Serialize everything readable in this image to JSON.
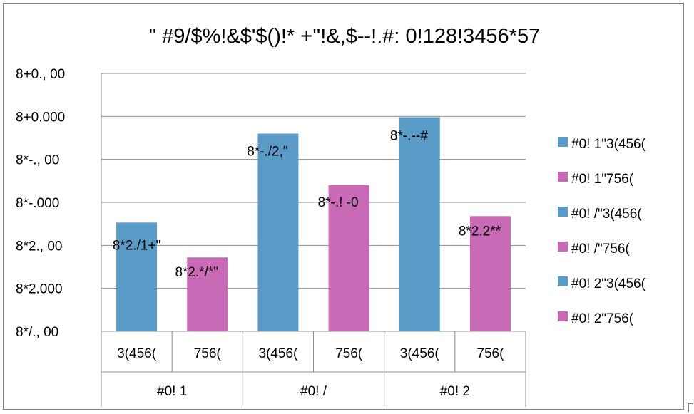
{
  "chart_data": {
    "type": "bar",
    "title": "\"  #9/$%!&$'$()!* +''!&,$--!.#: 0!128!3456*57",
    "y_tick_labels": [
      "8*/., 00",
      "8*2.000",
      "8*2., 00",
      "8*-.000",
      "8*-., 00",
      "8+0.000",
      "8+0., 00"
    ],
    "ylim": [
      0,
      6
    ],
    "groups": [
      "#0! 1",
      "#0! /",
      "#0! 2"
    ],
    "categories": [
      "3(456(",
      "756(",
      "3(456(",
      "756(",
      "3(456(",
      "756("
    ],
    "series": [
      {
        "name": "#0! 1\"3(456(",
        "group": 0,
        "sub": 0,
        "color": "#5b9bc8",
        "value": 2.53,
        "label": "8*2./1+\""
      },
      {
        "name": "#0! 1\"756(",
        "group": 0,
        "sub": 1,
        "color": "#c86ab6",
        "value": 1.72,
        "label": "8*2.*/*\""
      },
      {
        "name": "#0! /\"3(456(",
        "group": 1,
        "sub": 0,
        "color": "#5b9bc8",
        "value": 4.6,
        "label": "8*-./2,\""
      },
      {
        "name": "#0! /\"756(",
        "group": 1,
        "sub": 1,
        "color": "#c86ab6",
        "value": 3.4,
        "label": "8*-.! -0"
      },
      {
        "name": "#0! 2\"3(456(",
        "group": 2,
        "sub": 0,
        "color": "#5b9bc8",
        "value": 4.98,
        "label": "8*-.--#"
      },
      {
        "name": "#0! 2\"756(",
        "group": 2,
        "sub": 1,
        "color": "#c86ab6",
        "value": 2.68,
        "label": "8*2.2**"
      }
    ],
    "grid": true,
    "legend_position": "right"
  }
}
